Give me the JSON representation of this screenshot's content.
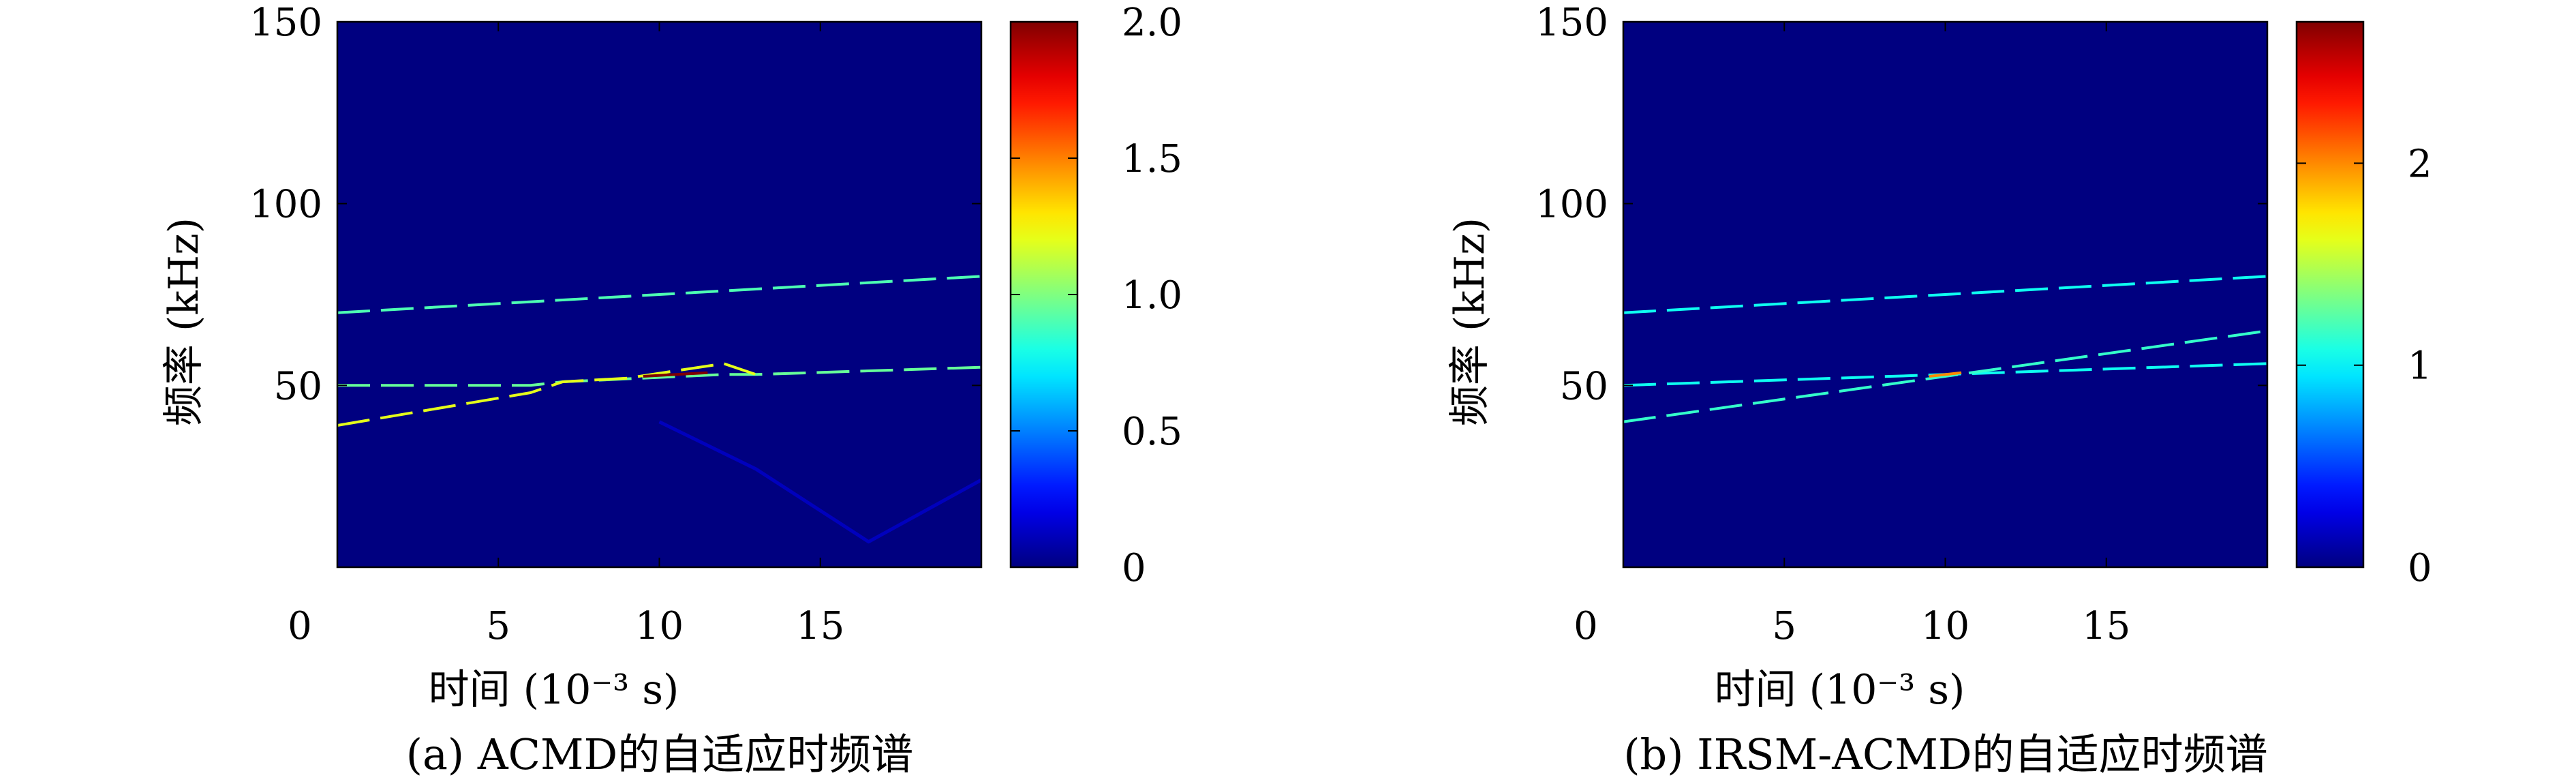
{
  "chart_data": [
    {
      "type": "heatmap",
      "caption": "(a) ACMD的自适应时频谱",
      "xlabel": "时间 (10⁻³ s)",
      "ylabel": "频率 (kHz)",
      "xlim": [
        0,
        20
      ],
      "ylim": [
        0,
        150
      ],
      "xticks": [
        0,
        5,
        10,
        15
      ],
      "yticks": [
        50,
        100,
        150
      ],
      "colorbar": {
        "colormap": "jet",
        "range": [
          0,
          2.0
        ],
        "ticks": [
          "0",
          "0.5",
          "1.0",
          "1.5",
          "2.0"
        ]
      },
      "series": [
        {
          "points": [
            [
              0,
              70
            ],
            [
              20,
              80
            ]
          ],
          "intensity": 0.9,
          "dashed": true
        },
        {
          "points": [
            [
              0,
              50
            ],
            [
              6,
              50
            ],
            [
              7,
              51
            ],
            [
              12,
              53
            ],
            [
              13,
              53
            ],
            [
              20,
              55
            ]
          ],
          "intensity": 0.95,
          "dashed": true
        },
        {
          "points": [
            [
              0,
              39
            ],
            [
              6,
              48
            ],
            [
              7,
              51
            ],
            [
              9,
              52
            ],
            [
              12,
              56
            ],
            [
              13,
              53
            ]
          ],
          "intensity": 1.2,
          "dashed": true
        },
        {
          "points": [
            [
              9.5,
              52.5
            ],
            [
              11.5,
              53.5
            ]
          ],
          "intensity": 2.0,
          "dashed": false
        },
        {
          "points": [
            [
              10,
              40
            ],
            [
              13,
              27
            ],
            [
              16.5,
              7
            ],
            [
              20,
              24
            ]
          ],
          "intensity": 0.12,
          "dashed": false
        }
      ]
    },
    {
      "type": "heatmap",
      "caption": "(b) IRSM-ACMD的自适应时频谱",
      "xlabel": "时间 (10⁻³ s)",
      "ylabel": "频率 (kHz)",
      "xlim": [
        0,
        20
      ],
      "ylim": [
        0,
        150
      ],
      "xticks": [
        0,
        5,
        10,
        15
      ],
      "yticks": [
        50,
        100,
        150
      ],
      "colorbar": {
        "colormap": "jet",
        "range": [
          0,
          2.7
        ],
        "ticks": [
          "0",
          "1",
          "2"
        ]
      },
      "series": [
        {
          "points": [
            [
              0,
              70
            ],
            [
              20,
              80
            ]
          ],
          "intensity": 1.05,
          "dashed": true
        },
        {
          "points": [
            [
              0,
              50
            ],
            [
              20,
              56
            ]
          ],
          "intensity": 1.05,
          "dashed": true
        },
        {
          "points": [
            [
              0,
              40
            ],
            [
              20,
              65
            ]
          ],
          "intensity": 1.15,
          "dashed": true
        },
        {
          "points": [
            [
              9.5,
              52.5
            ],
            [
              10.5,
              53.5
            ]
          ],
          "intensity": 2.0,
          "dashed": false
        }
      ]
    }
  ]
}
